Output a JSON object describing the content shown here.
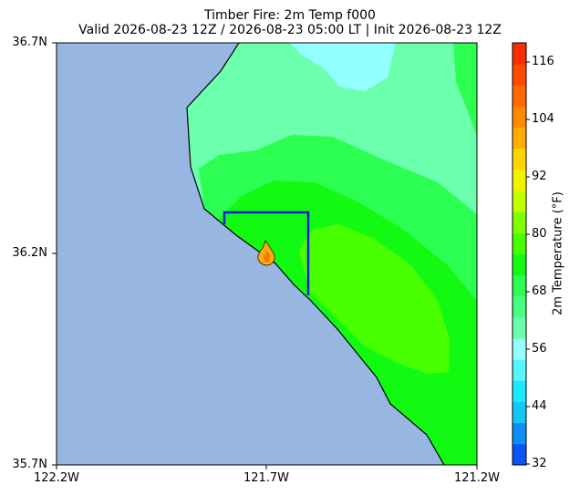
{
  "title_line1": "Timber Fire: 2m Temp f000",
  "title_line2": "Valid 2026-08-23 12Z / 2026-08-23 05:00 LT | Init 2026-08-23 12Z",
  "colorbar_label": "2m Temperature (°F)",
  "colorbar_ticks": [
    "116",
    "104",
    "92",
    "80",
    "68",
    "56",
    "44",
    "32"
  ],
  "lat_ticks": [
    "36.7N",
    "36.2N",
    "35.7N"
  ],
  "lon_ticks": [
    "122.2W",
    "121.7W",
    "121.2W"
  ],
  "map_colors": {
    "ocean": "#97b6e1",
    "temp_57": "#6cffae",
    "temp_53": "#93ffff",
    "temp_62": "#2dff52",
    "temp_66": "#12fa12",
    "temp_70": "#48ff00",
    "coast": "#000000",
    "box": "#0a1fd6",
    "fire_fill": "#ffa915"
  },
  "colorbar_colors": [
    "#0b55f5",
    "#0d8ff5",
    "#12c8f5",
    "#1be9ff",
    "#55f6ff",
    "#93ffff",
    "#6cffae",
    "#4aff80",
    "#2dff52",
    "#12fa12",
    "#48ff00",
    "#80ff00",
    "#c4ff00",
    "#f3f300",
    "#ffd500",
    "#ffae00",
    "#ff8a00",
    "#ff6a00",
    "#ff4a00",
    "#f82d00"
  ]
}
